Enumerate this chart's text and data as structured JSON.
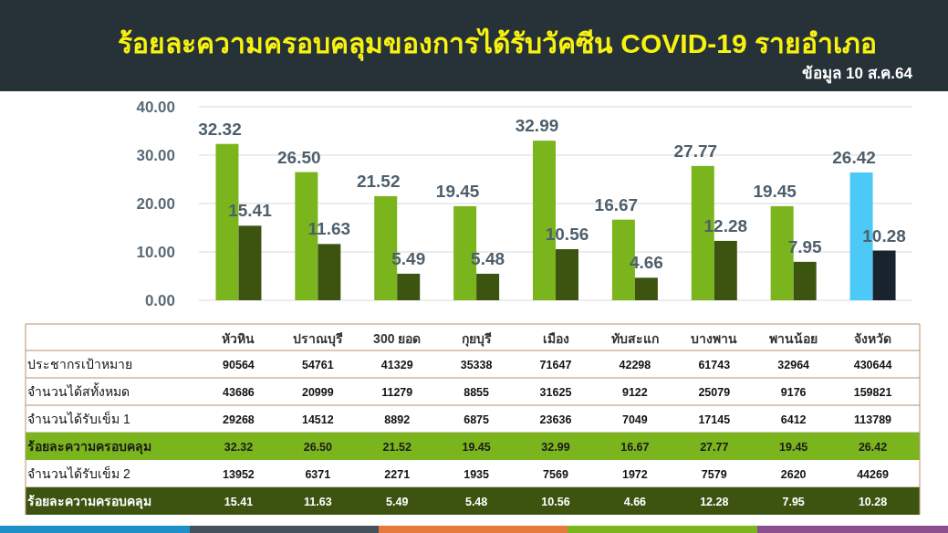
{
  "chart_data": {
    "type": "bar",
    "title": "ร้อยละความครอบคลุมของการได้รับวัคซีน COVID-19 รายอำเภอ",
    "subtitle": "ข้อมูล 10 ส.ค.64",
    "categories": [
      "หัวหิน",
      "ปราณบุรี",
      "300 ยอด",
      "กุยบุรี",
      "เมือง",
      "ทับสะแก",
      "บางพาน",
      "พานน้อย",
      "จังหวัด"
    ],
    "series": [
      {
        "type": "other",
        "name": "ประชากรเป้าหมาย",
        "values": [
          null,
          null,
          null,
          null,
          null,
          null,
          null,
          null,
          null
        ],
        "value_labels": [
          "90564",
          "54761",
          "41329",
          "35338",
          "71647",
          "42298",
          "61743",
          "32964",
          "430644"
        ]
      },
      {
        "type": "other",
        "name": "จำนวนได้สทั้งหมด",
        "values": [
          null,
          null,
          null,
          null,
          null,
          null,
          null,
          null,
          null
        ],
        "value_labels": [
          "43686",
          "20999",
          "11279",
          "8855",
          "31625",
          "9122",
          "25079",
          "9176",
          "159821"
        ]
      },
      {
        "type": "other",
        "name": "จำนวนได้รับเข็ม 1",
        "values": [
          null,
          null,
          null,
          null,
          null,
          null,
          null,
          null,
          null
        ],
        "value_labels": [
          "29268",
          "14512",
          "8892",
          "6875",
          "23636",
          "7049",
          "17145",
          "6412",
          "113789"
        ]
      },
      {
        "name": "ร้อยละความครอบคลุม",
        "color": "#7ab51d",
        "colors": [
          "#7ab51d",
          "#7ab51d",
          "#7ab51d",
          "#7ab51d",
          "#7ab51d",
          "#7ab51d",
          "#7ab51d",
          "#7ab51d",
          "#4cc9f7"
        ],
        "values": [
          32.32,
          26.5,
          21.52,
          19.45,
          32.99,
          16.67,
          27.77,
          19.45,
          26.42
        ],
        "value_labels": [
          "32.32",
          "26.50",
          "21.52",
          "19.45",
          "32.99",
          "16.67",
          "27.77",
          "19.45",
          "26.42"
        ]
      },
      {
        "type": "other",
        "name": "จำนวนได้รับเข็ม 2",
        "values": [
          null,
          null,
          null,
          null,
          null,
          null,
          null,
          null,
          null
        ],
        "value_labels": [
          "13952",
          "6371",
          "2271",
          "1935",
          "7569",
          "1972",
          "7579",
          "2620",
          "44269"
        ]
      },
      {
        "name": "ร้อยละความครอบคลุม",
        "color": "#3c5410",
        "colors": [
          "#3c5410",
          "#3c5410",
          "#3c5410",
          "#3c5410",
          "#3c5410",
          "#3c5410",
          "#3c5410",
          "#3c5410",
          "#18232d"
        ],
        "values": [
          15.41,
          11.63,
          5.49,
          5.48,
          10.56,
          4.66,
          12.28,
          7.95,
          10.28
        ],
        "value_labels": [
          "15.41",
          "11.63",
          "5.49",
          "5.48",
          "10.56",
          "4.66",
          "12.28",
          "7.95",
          "10.28"
        ]
      }
    ],
    "ylim": [
      0,
      40
    ],
    "yticks": [
      {
        "value": 0,
        "label": "0.00"
      },
      {
        "value": 10,
        "label": "10.00"
      },
      {
        "value": 20,
        "label": "20.00"
      },
      {
        "value": 30,
        "label": "30.00"
      },
      {
        "value": 40,
        "label": "40.00"
      }
    ],
    "grid": "y"
  }
}
